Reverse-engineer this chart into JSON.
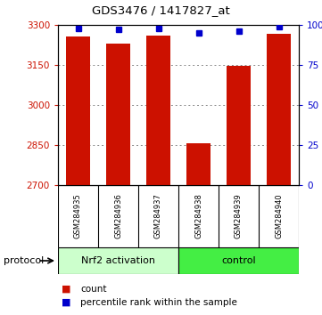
{
  "title": "GDS3476 / 1417827_at",
  "samples": [
    "GSM284935",
    "GSM284936",
    "GSM284937",
    "GSM284938",
    "GSM284939",
    "GSM284940"
  ],
  "bar_values": [
    3255,
    3230,
    3260,
    2855,
    3145,
    3265
  ],
  "percentile_values": [
    98,
    97,
    98,
    95,
    96,
    99
  ],
  "ylim_left": [
    2700,
    3300
  ],
  "ylim_right": [
    0,
    100
  ],
  "yticks_left": [
    2700,
    2850,
    3000,
    3150,
    3300
  ],
  "yticks_right": [
    0,
    25,
    50,
    75,
    100
  ],
  "ytick_labels_right": [
    "0",
    "25",
    "50",
    "75",
    "100%"
  ],
  "bar_color": "#cc1100",
  "marker_color": "#0000cc",
  "grid_color": "#888888",
  "bar_width": 0.6,
  "groups": [
    {
      "label": "Nrf2 activation",
      "indices": [
        0,
        1,
        2
      ],
      "color": "#ccffcc"
    },
    {
      "label": "control",
      "indices": [
        3,
        4,
        5
      ],
      "color": "#44ee44"
    }
  ],
  "protocol_label": "protocol",
  "background_color": "#ffffff"
}
